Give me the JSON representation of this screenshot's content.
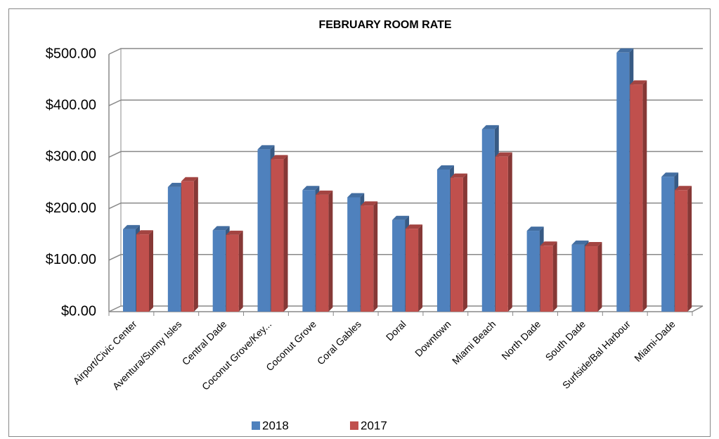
{
  "chart_data": {
    "type": "bar",
    "title": "FEBRUARY ROOM RATE",
    "categories": [
      "Airport/Civic Center",
      "Aventura/Sunny Isles",
      "Central Dade",
      "Coconut Grove/Key...",
      "Coconut Grove",
      "Coral Gables",
      "Doral",
      "Downtown",
      "Miami Beach",
      "North Dade",
      "South Dade",
      "Surfside/Bal Harbour",
      "Miami-Dade"
    ],
    "series": [
      {
        "name": "2018",
        "color": "#4f81bd",
        "values": [
          160,
          242,
          158,
          315,
          236,
          222,
          178,
          276,
          354,
          157,
          130,
          503,
          262
        ]
      },
      {
        "name": "2017",
        "color": "#c0504d",
        "values": [
          150,
          253,
          149,
          296,
          227,
          206,
          161,
          260,
          301,
          128,
          127,
          441,
          236
        ]
      }
    ],
    "ylim": [
      0,
      500
    ],
    "yticks": [
      {
        "value": 0,
        "label": "$0.00"
      },
      {
        "value": 100,
        "label": "$100.00"
      },
      {
        "value": 200,
        "label": "$200.00"
      },
      {
        "value": 300,
        "label": "$300.00"
      },
      {
        "value": 400,
        "label": "$400.00"
      },
      {
        "value": 500,
        "label": "$500.00"
      }
    ],
    "grid": true,
    "legend": "bottom"
  }
}
